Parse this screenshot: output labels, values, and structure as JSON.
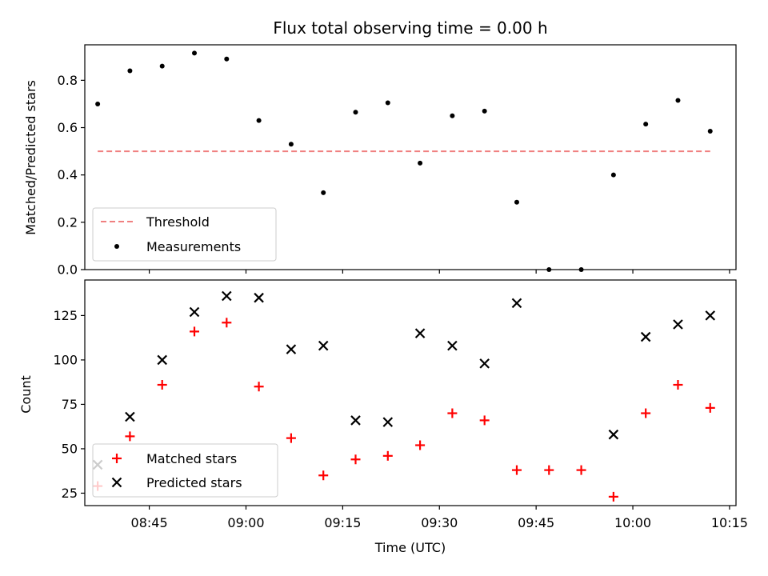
{
  "chart_data": [
    {
      "type": "scatter",
      "title": "Flux total observing time = 0.00 h",
      "xlabel": "",
      "ylabel": "Matched/Predicted stars",
      "ylim": [
        0.0,
        0.95
      ],
      "yticks": [
        "0.0",
        "0.2",
        "0.4",
        "0.6",
        "0.8"
      ],
      "x": [
        "08:37",
        "08:42",
        "08:47",
        "08:52",
        "08:57",
        "09:02",
        "09:07",
        "09:12",
        "09:17",
        "09:22",
        "09:27",
        "09:32",
        "09:37",
        "09:42",
        "09:47",
        "09:52",
        "09:57",
        "10:02",
        "10:07",
        "10:12"
      ],
      "series": [
        {
          "name": "Threshold",
          "kind": "line",
          "style": "dashed",
          "color": "#f08080",
          "x": [
            "08:37",
            "10:12"
          ],
          "values": [
            0.5,
            0.5
          ]
        },
        {
          "name": "Measurements",
          "kind": "points",
          "marker": "dot",
          "color": "#000000",
          "values": [
            0.7,
            0.84,
            0.86,
            0.915,
            0.89,
            0.63,
            0.53,
            0.325,
            0.665,
            0.705,
            0.45,
            0.65,
            0.67,
            0.285,
            0.0,
            0.0,
            0.4,
            0.615,
            0.715,
            0.585
          ]
        }
      ],
      "legend": "lower-left",
      "grid": false
    },
    {
      "type": "scatter",
      "title": "",
      "xlabel": "Time (UTC)",
      "ylabel": "Count",
      "ylim": [
        18,
        145
      ],
      "yticks": [
        "25",
        "50",
        "75",
        "100",
        "125"
      ],
      "xlim": [
        "08:35",
        "10:16"
      ],
      "xticks": [
        "08:45",
        "09:00",
        "09:15",
        "09:30",
        "09:45",
        "10:00",
        "10:15"
      ],
      "x": [
        "08:37",
        "08:42",
        "08:47",
        "08:52",
        "08:57",
        "09:02",
        "09:07",
        "09:12",
        "09:17",
        "09:22",
        "09:27",
        "09:32",
        "09:37",
        "09:42",
        "09:47",
        "09:52",
        "09:57",
        "10:02",
        "10:07",
        "10:12"
      ],
      "series": [
        {
          "name": "Matched stars",
          "marker": "plus",
          "color": "#ff0000",
          "values": [
            29,
            57,
            86,
            116,
            121,
            85,
            56,
            35,
            44,
            46,
            52,
            70,
            66,
            38,
            38,
            38,
            23,
            70,
            86,
            73
          ]
        },
        {
          "name": "Predicted stars",
          "marker": "x",
          "color": "#000000",
          "values": [
            41,
            68,
            100,
            127,
            136,
            135,
            106,
            108,
            66,
            65,
            115,
            108,
            98,
            132,
            null,
            null,
            58,
            113,
            120,
            125
          ]
        }
      ],
      "legend": "lower-left",
      "grid": false
    }
  ]
}
